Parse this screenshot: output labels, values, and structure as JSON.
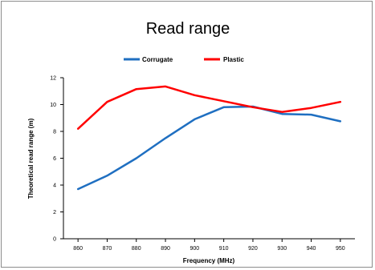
{
  "chart_data": {
    "type": "line",
    "title": "Read range",
    "xlabel": "Frequency (MHz)",
    "ylabel": "Theoretical read range (m)",
    "x": [
      860,
      870,
      880,
      890,
      900,
      910,
      920,
      930,
      940,
      950
    ],
    "xlim": [
      855,
      955
    ],
    "ylim": [
      0,
      12
    ],
    "x_ticks": [
      "860",
      "870",
      "880",
      "890",
      "900",
      "910",
      "920",
      "930",
      "940",
      "950"
    ],
    "y_ticks": [
      "0",
      "2",
      "4",
      "6",
      "8",
      "10",
      "12"
    ],
    "grid": false,
    "legend_position": "top",
    "series": [
      {
        "name": "Corrugate",
        "color": "#1f6fc1",
        "values": [
          3.7,
          4.7,
          6.0,
          7.5,
          8.9,
          9.8,
          9.85,
          9.3,
          9.25,
          8.75
        ]
      },
      {
        "name": "Plastic",
        "color": "#ff0000",
        "values": [
          8.2,
          10.2,
          11.15,
          11.35,
          10.7,
          10.25,
          9.8,
          9.45,
          9.75,
          10.2
        ]
      }
    ]
  }
}
